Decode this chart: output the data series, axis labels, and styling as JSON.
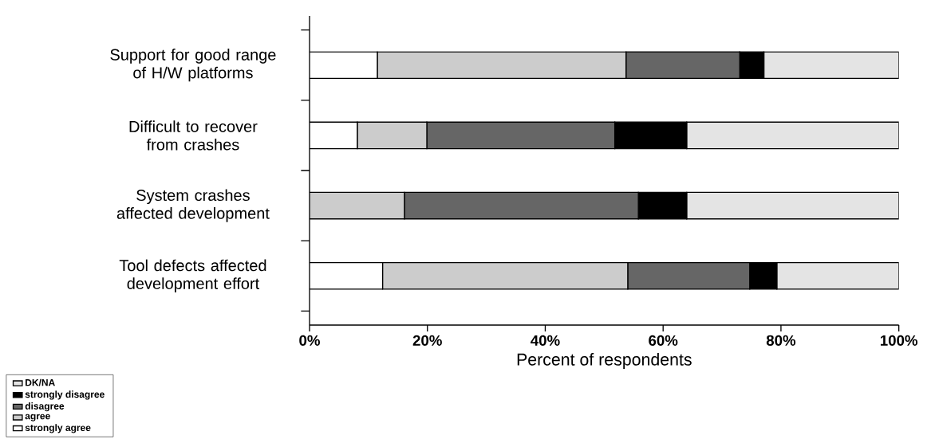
{
  "chart_data": {
    "type": "bar",
    "orientation": "horizontal",
    "stacked": true,
    "xlabel": "Percent of respondents",
    "categories": [
      "Support for good range of H/W platforms",
      "Difficult to recover from crashes",
      "System crashes affected development",
      "Tool defects affected development effort"
    ],
    "series": [
      {
        "name": "strongly agree",
        "color": "#ffffff",
        "values": [
          11.5,
          8.1,
          0,
          12.4
        ]
      },
      {
        "name": "agree",
        "color": "#cccccc",
        "values": [
          42.2,
          11.8,
          16.1,
          41.6
        ]
      },
      {
        "name": "disagree",
        "color": "#666666",
        "values": [
          19.3,
          31.9,
          39.7,
          20.7
        ]
      },
      {
        "name": "strongly disagree",
        "color": "#000000",
        "values": [
          4.1,
          12.2,
          8.2,
          4.6
        ]
      },
      {
        "name": "DK/NA",
        "color": "#e4e4e4",
        "values": [
          22.9,
          36.0,
          36.0,
          20.7
        ]
      }
    ],
    "xlim": [
      0,
      100
    ],
    "xticks": [
      {
        "value": 0,
        "label": "0%"
      },
      {
        "value": 20,
        "label": "20%"
      },
      {
        "value": 40,
        "label": "40%"
      },
      {
        "value": 60,
        "label": "60%"
      },
      {
        "value": 80,
        "label": "80%"
      },
      {
        "value": 100,
        "label": "100%"
      }
    ],
    "legend": "bottom left",
    "grid": false
  }
}
